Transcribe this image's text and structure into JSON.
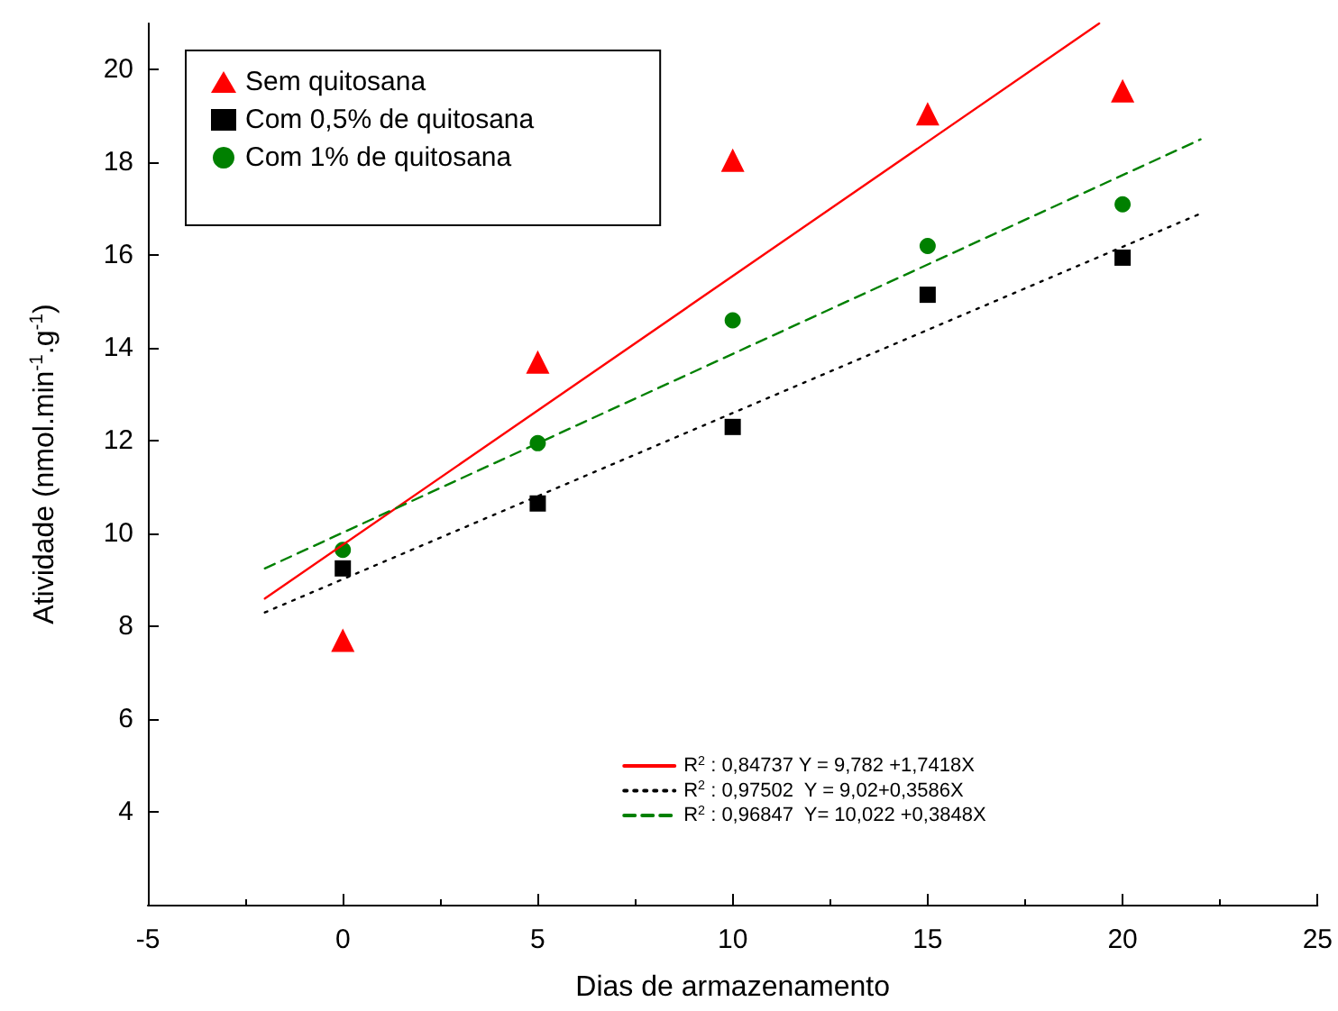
{
  "chart_data": {
    "type": "scatter",
    "xlabel": "Dias de armazenamento",
    "ylabel": "Atividade (nmol.min$^{-1}$.g$^{-1}$)",
    "xlim": [
      -5,
      25
    ],
    "xticks": [
      -5,
      0,
      5,
      10,
      15,
      20,
      25
    ],
    "ylim": [
      2,
      21
    ],
    "yticks": [
      4,
      6,
      8,
      10,
      12,
      14,
      16,
      18,
      20
    ],
    "grid": false,
    "legend": "top left",
    "series": [
      {
        "name": "Sem quitosana",
        "type": "scatter",
        "marker": "triangle",
        "color": "#ff0000",
        "x": [
          0,
          5,
          10,
          15,
          20
        ],
        "values": [
          7.7,
          13.7,
          18.05,
          19.05,
          19.55
        ]
      },
      {
        "name": "Com 0,5% de quitosana",
        "type": "scatter",
        "marker": "square",
        "color": "#000000",
        "x": [
          0,
          5,
          10,
          15,
          20
        ],
        "values": [
          9.25,
          10.65,
          12.3,
          15.15,
          15.95
        ]
      },
      {
        "name": "Com 1% de quitosana",
        "type": "scatter",
        "marker": "circle",
        "color": "#008000",
        "x": [
          0,
          5,
          10,
          15,
          20
        ],
        "values": [
          9.65,
          11.95,
          14.6,
          16.2,
          17.1
        ]
      },
      {
        "name": "R$^{2}$ : 0,84737 Y = 9,782 +1,7418X",
        "type": "line",
        "line_style": "solid",
        "color": "#ff0000",
        "x": [
          -2,
          19.4
        ],
        "values": [
          8.6,
          21
        ]
      },
      {
        "name": "R$^{2}$ : 0,97502  Y = 9,02+0,3586X",
        "type": "line",
        "line_style": "dotted",
        "color": "#000000",
        "x": [
          -2,
          22
        ],
        "values": [
          8.3,
          16.9
        ]
      },
      {
        "name": "R$^{2}$ : 0,96847  Y= 10,022 +0,3848X",
        "type": "line",
        "line_style": "dashed",
        "color": "#008000",
        "x": [
          -2,
          22
        ],
        "values": [
          9.25,
          18.5
        ]
      }
    ]
  }
}
